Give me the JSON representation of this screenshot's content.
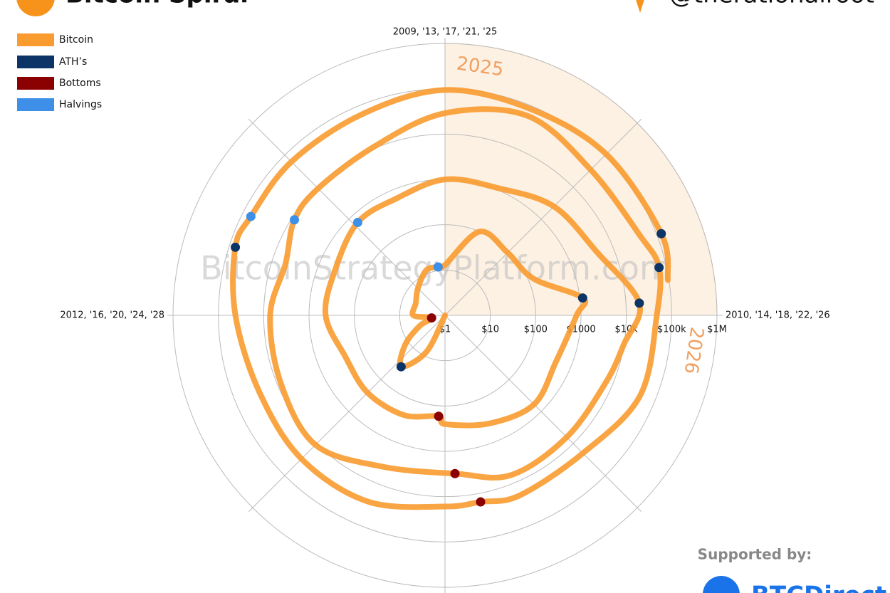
{
  "chart_data": {
    "type": "polar-spiral",
    "title": "Bitcoin Spiral",
    "credit": "@therationalroot",
    "watermark": "BitcoinStrategyPlatform.com",
    "sponsor_label": "Supported by:",
    "sponsor": "BTCDirect",
    "log_scale": true,
    "ylim": [
      1,
      1000000
    ],
    "yticks": [
      {
        "value": 1,
        "label": "$1"
      },
      {
        "value": 10,
        "label": "$10"
      },
      {
        "value": 100,
        "label": "$100"
      },
      {
        "value": 1000,
        "label": "$1000"
      },
      {
        "value": 10000,
        "label": "$10k"
      },
      {
        "value": 100000,
        "label": "$100k"
      },
      {
        "value": 1000000,
        "label": "$1M"
      }
    ],
    "xticks": [
      {
        "value": 2009,
        "label": "2009, '13, '17, '21, '25"
      },
      {
        "value": 2010,
        "label": "2010, '14, '18, '22, '26"
      },
      {
        "value": 2012,
        "label": "2012, '16, '20, '24, '28"
      }
    ],
    "highlight_range": [
      2025,
      2026
    ],
    "highlight_color": "#fdf1e4",
    "series": [
      {
        "name": "Bitcoin",
        "color": "#f99b2f",
        "mode": "line",
        "x": [
          2011.15,
          2011.3,
          2011.45,
          2011.6,
          2011.75,
          2011.88,
          2012.0,
          2012.25,
          2012.5,
          2012.75,
          2012.91,
          2013.0,
          2013.25,
          2013.5,
          2013.75,
          2013.92,
          2014.0,
          2014.25,
          2014.5,
          2014.75,
          2015.0,
          2015.04,
          2015.25,
          2015.5,
          2015.75,
          2016.0,
          2016.25,
          2016.52,
          2016.75,
          2017.0,
          2017.25,
          2017.5,
          2017.75,
          2017.96,
          2018.1,
          2018.25,
          2018.5,
          2018.75,
          2018.96,
          2019.25,
          2019.5,
          2019.75,
          2020.0,
          2020.2,
          2020.36,
          2020.5,
          2020.75,
          2021.0,
          2021.25,
          2021.5,
          2021.75,
          2021.86,
          2022.0,
          2022.25,
          2022.5,
          2022.75,
          2022.88,
          2023.0,
          2023.25,
          2023.5,
          2023.75,
          2024.0,
          2024.2,
          2024.3,
          2024.5,
          2024.75,
          2025.0,
          2025.25,
          2025.5,
          2025.77,
          2025.9
        ],
        "values": [
          1,
          8,
          31,
          12,
          4,
          2,
          5,
          5,
          7,
          12,
          12,
          13,
          100,
          90,
          130,
          1150,
          800,
          450,
          600,
          380,
          250,
          170,
          240,
          260,
          240,
          430,
          420,
          650,
          620,
          1000,
          1100,
          2500,
          4300,
          19700,
          10000,
          7000,
          6300,
          6500,
          3150,
          4100,
          11000,
          8300,
          7200,
          5000,
          8600,
          9100,
          11000,
          29000,
          58000,
          35000,
          44000,
          69000,
          47000,
          45000,
          20000,
          20000,
          15500,
          16500,
          28000,
          30000,
          27000,
          42000,
          73000,
          64000,
          62000,
          63000,
          94000,
          85000,
          107000,
          126000,
          95000
        ]
      },
      {
        "name": "ATH’s",
        "color": "#0d3466",
        "mode": "markers",
        "x": [
          2011.45,
          2013.92,
          2017.96,
          2021.86,
          2024.2,
          2025.77
        ],
        "values": [
          31,
          1150,
          19700,
          69000,
          73000,
          126000
        ]
      },
      {
        "name": "Bottoms",
        "color": "#8b0000",
        "mode": "markers",
        "x": [
          2011.88,
          2015.04,
          2018.96,
          2022.88
        ],
        "values": [
          2,
          170,
          3150,
          15500
        ]
      },
      {
        "name": "Halvings",
        "color": "#3d8fe8",
        "mode": "markers",
        "x": [
          2012.91,
          2016.52,
          2020.36,
          2024.3
        ],
        "values": [
          12,
          650,
          8600,
          64000
        ]
      }
    ]
  }
}
